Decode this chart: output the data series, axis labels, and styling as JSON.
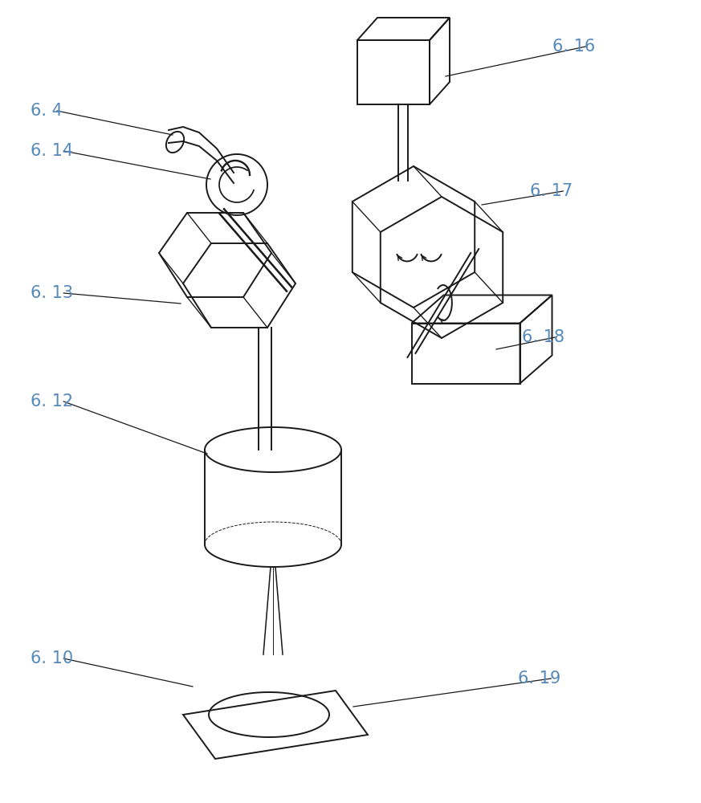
{
  "bg_color": "#ffffff",
  "line_color": "#1a1a1a",
  "label_color": "#5588bb",
  "font_size": 15,
  "lw": 1.4
}
